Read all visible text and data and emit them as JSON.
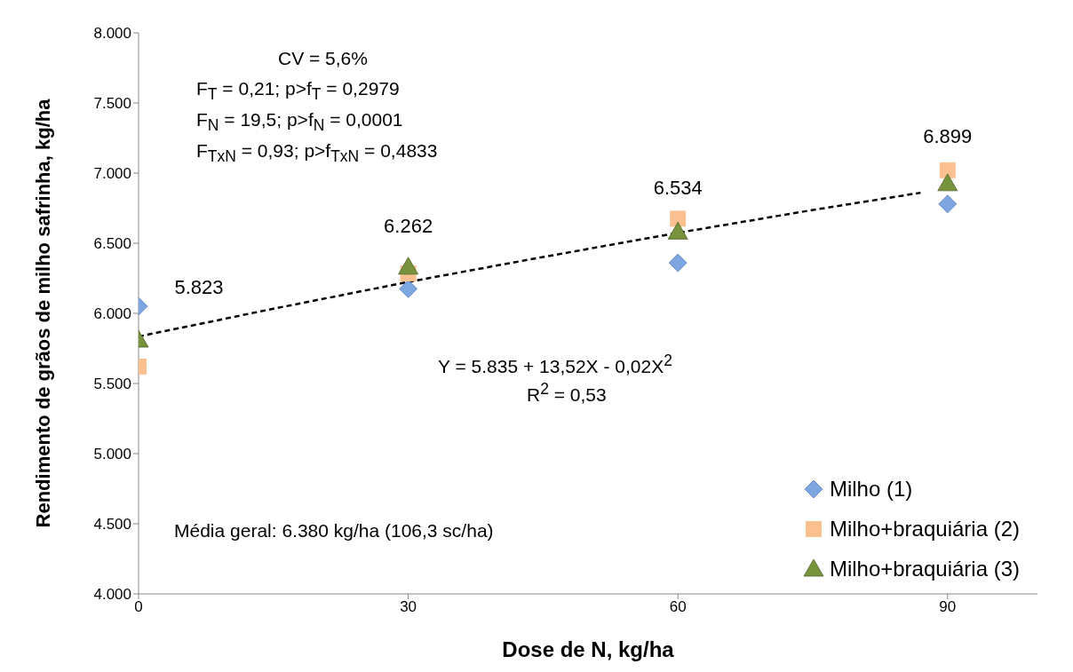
{
  "chart_data": {
    "type": "scatter",
    "xlabel": "Dose de N, kg/ha",
    "ylabel": "Rendimento de grãos de milho safrinha, kg/ha",
    "x": [
      0,
      30,
      60,
      90
    ],
    "series": [
      {
        "name": "Milho (1)",
        "color": "#7ea6e0",
        "marker": "diamond",
        "values": [
          6050,
          6175,
          6360,
          6780
        ]
      },
      {
        "name": "Milho+braquiária (2)",
        "color": "#fac090",
        "marker": "square",
        "values": [
          5620,
          6285,
          6675,
          7020
        ]
      },
      {
        "name": "Milho+braquiária (3)",
        "color": "#77933c",
        "marker": "triangle",
        "values": [
          5810,
          6330,
          6580,
          6925
        ]
      },
      {
        "type": "line",
        "color": "#000000",
        "line_style": "dashed",
        "marker": "none",
        "x": [
          0,
          15,
          30,
          45,
          60,
          75,
          87
        ],
        "values": [
          5835,
          6033,
          6224,
          6402,
          6574,
          6737,
          6860
        ]
      }
    ],
    "xlim": [
      0,
      100
    ],
    "xticks": [
      0,
      30,
      60,
      90
    ],
    "ylim": [
      4000,
      8000
    ],
    "yticks": [
      {
        "value": 4000,
        "label": "4.000"
      },
      {
        "value": 4500,
        "label": "4.500"
      },
      {
        "value": 5000,
        "label": "5.000"
      },
      {
        "value": 5500,
        "label": "5.500"
      },
      {
        "value": 6000,
        "label": "6.000"
      },
      {
        "value": 6500,
        "label": "6.500"
      },
      {
        "value": 7000,
        "label": "7.000"
      },
      {
        "value": 7500,
        "label": "7.500"
      },
      {
        "value": 8000,
        "label": "8.000"
      }
    ],
    "grid": false,
    "legend": "bottom right",
    "annotations": [
      {
        "text": "5.823",
        "x": 0,
        "y": 5823
      },
      {
        "text": "6.262",
        "x": 30,
        "y": 6262
      },
      {
        "text": "6.534",
        "x": 60,
        "y": 6534
      },
      {
        "text": "6.899",
        "x": 90,
        "y": 6899
      },
      "CV = 5,6%",
      "F$_{T}$ = 0,21;  p>f$_{T}$ = 0,2979",
      "F$_{N}$ = 19,5;  p>f$_{N}$ = 0,0001",
      "F$_{TxN}$ = 0,93;  p>f$_{TxN}$ = 0,4833",
      "Y = 5.835 + 13,52X - 0,02X$^{2}$",
      "R$^{2}$ = 0,53",
      "Média geral: 6.380 kg/ha (106,3 sc/ha)"
    ]
  }
}
